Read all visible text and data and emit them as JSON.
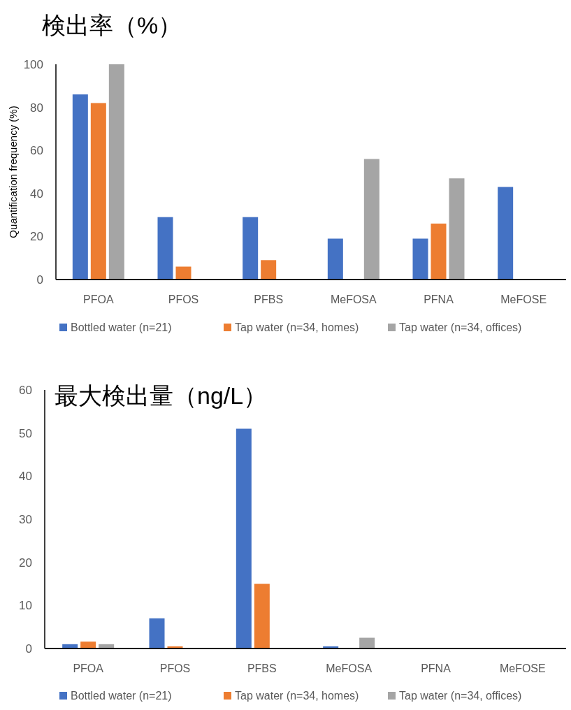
{
  "chart_data": [
    {
      "type": "bar",
      "title": "検出率（%）",
      "ylabel": "Quantification frequency (%)",
      "categories": [
        "PFOA",
        "PFOS",
        "PFBS",
        "MeFOSA",
        "PFNA",
        "MeFOSE"
      ],
      "series": [
        {
          "name": "Bottled water (n=21)",
          "color": "#4472c4",
          "values": [
            86,
            29,
            29,
            19,
            19,
            43
          ]
        },
        {
          "name": "Tap water (n=34, homes)",
          "color": "#ed7d31",
          "values": [
            82,
            6,
            9,
            0,
            26,
            0
          ]
        },
        {
          "name": "Tap water (n=34, offices)",
          "color": "#a5a5a5",
          "values": [
            100,
            0,
            0,
            56,
            47,
            0
          ]
        }
      ],
      "ylim": [
        0,
        100
      ],
      "yticks": [
        0,
        20,
        40,
        60,
        80,
        100
      ],
      "grid": false,
      "legend": "bottom"
    },
    {
      "type": "bar",
      "title": "最大検出量（ng/L）",
      "categories": [
        "PFOA",
        "PFOS",
        "PFBS",
        "MeFOSA",
        "PFNA",
        "MeFOSE"
      ],
      "series": [
        {
          "name": "Bottled water (n=21)",
          "color": "#4472c4",
          "values": [
            1.0,
            7.0,
            51,
            0.5,
            0,
            0
          ]
        },
        {
          "name": "Tap water (n=34, homes)",
          "color": "#ed7d31",
          "values": [
            1.6,
            0.5,
            15,
            0,
            0,
            0
          ]
        },
        {
          "name": "Tap water (n=34, offices)",
          "color": "#a5a5a5",
          "values": [
            1.0,
            0,
            0,
            2.5,
            0,
            0
          ]
        }
      ],
      "ylim": [
        0,
        60
      ],
      "yticks": [
        0,
        10,
        20,
        30,
        40,
        50,
        60
      ],
      "grid": false,
      "legend": "bottom"
    }
  ]
}
